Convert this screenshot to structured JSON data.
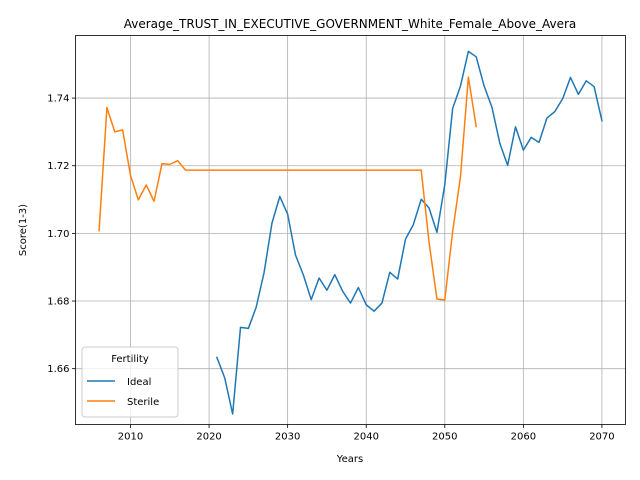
{
  "chart_data": {
    "type": "line",
    "title": "Average_TRUST_IN_EXECUTIVE_GOVERNMENT_White_Female_Above_Avera",
    "xlabel": "Years",
    "ylabel": "Score(1-3)",
    "xlim": [
      2003,
      2073
    ],
    "ylim": [
      1.6435,
      1.7585
    ],
    "xticks": [
      2010,
      2020,
      2030,
      2040,
      2050,
      2060,
      2070
    ],
    "yticks": [
      1.66,
      1.68,
      1.7,
      1.72,
      1.74
    ],
    "ytick_labels": [
      "1.66",
      "1.68",
      "1.70",
      "1.72",
      "1.74"
    ],
    "grid": true,
    "legend": {
      "title": "Fertility",
      "placement": "lower-left"
    },
    "series": [
      {
        "name": "Ideal",
        "color": "#1f77b4",
        "x": [
          2021,
          2022,
          2023,
          2024,
          2025,
          2026,
          2027,
          2028,
          2029,
          2030,
          2031,
          2032,
          2033,
          2034,
          2035,
          2036,
          2037,
          2038,
          2039,
          2040,
          2041,
          2042,
          2043,
          2044,
          2045,
          2046,
          2047,
          2048,
          2049,
          2050,
          2051,
          2052,
          2053,
          2054,
          2055,
          2056,
          2057,
          2058,
          2059,
          2060,
          2061,
          2062,
          2063,
          2064,
          2065,
          2066,
          2067,
          2068,
          2069,
          2070
        ],
        "y": [
          1.6633,
          1.6572,
          1.6466,
          1.6722,
          1.6719,
          1.6782,
          1.6884,
          1.703,
          1.7109,
          1.7057,
          1.6936,
          1.6877,
          1.6804,
          1.6868,
          1.6832,
          1.6878,
          1.6829,
          1.6794,
          1.684,
          1.6789,
          1.677,
          1.6794,
          1.6885,
          1.6865,
          1.6983,
          1.7026,
          1.7101,
          1.7075,
          1.7003,
          1.7144,
          1.7369,
          1.7436,
          1.7538,
          1.7522,
          1.7436,
          1.7373,
          1.7267,
          1.7201,
          1.7315,
          1.7246,
          1.7284,
          1.7269,
          1.7341,
          1.736,
          1.7398,
          1.7461,
          1.7411,
          1.7451,
          1.7434,
          1.7333
        ]
      },
      {
        "name": "Sterile",
        "color": "#ff7f0e",
        "x": [
          2006,
          2007,
          2008,
          2009,
          2010,
          2011,
          2012,
          2013,
          2014,
          2015,
          2016,
          2017,
          2018,
          2019,
          2020,
          2021,
          2022,
          2023,
          2024,
          2025,
          2026,
          2027,
          2028,
          2029,
          2030,
          2031,
          2032,
          2033,
          2034,
          2035,
          2036,
          2037,
          2038,
          2039,
          2040,
          2041,
          2042,
          2043,
          2044,
          2045,
          2046,
          2047,
          2048,
          2049,
          2050,
          2051,
          2052,
          2053,
          2054
        ],
        "y": [
          1.7008,
          1.7372,
          1.73,
          1.7306,
          1.7171,
          1.7099,
          1.7143,
          1.7095,
          1.7206,
          1.7204,
          1.7215,
          1.7187,
          1.7187,
          1.7187,
          1.7187,
          1.7187,
          1.7187,
          1.7187,
          1.7187,
          1.7187,
          1.7187,
          1.7187,
          1.7187,
          1.7187,
          1.7187,
          1.7187,
          1.7187,
          1.7187,
          1.7187,
          1.7187,
          1.7187,
          1.7187,
          1.7187,
          1.7187,
          1.7187,
          1.7187,
          1.7187,
          1.7187,
          1.7187,
          1.7187,
          1.7187,
          1.7187,
          1.6973,
          1.6806,
          1.6803,
          1.7005,
          1.7168,
          1.7462,
          1.7316
        ]
      }
    ]
  }
}
